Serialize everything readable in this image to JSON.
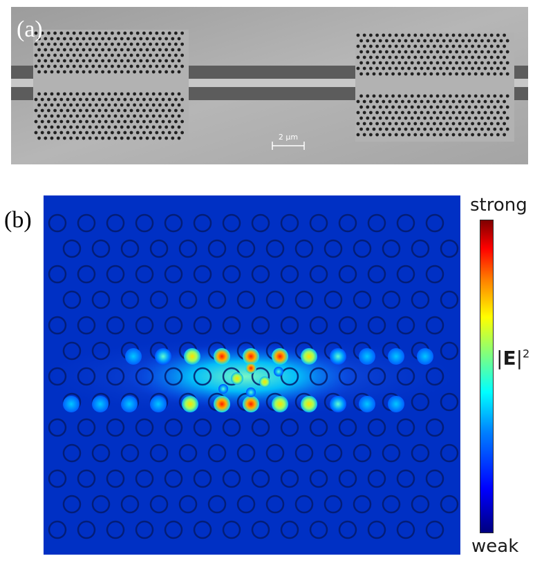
{
  "figure": {
    "panel_a_label": "(a)",
    "panel_b_label": "(b)",
    "scale_bar_text": "2 µm"
  },
  "colorbar": {
    "top_label": "strong",
    "bottom_label": "weak",
    "quantity_bar": "|",
    "quantity_symbol": "E",
    "quantity_bar_close": "|",
    "quantity_exponent": "2",
    "colormap": [
      "#00007f",
      "#0000ff",
      "#007fff",
      "#00ffff",
      "#7fff7f",
      "#ffff00",
      "#ff7f00",
      "#ff0000",
      "#7f0000"
    ]
  },
  "colors": {
    "sem_background": "#b0b0b0",
    "sem_waveguide": "#5a5a5a",
    "field_background": "#002fc0"
  }
}
